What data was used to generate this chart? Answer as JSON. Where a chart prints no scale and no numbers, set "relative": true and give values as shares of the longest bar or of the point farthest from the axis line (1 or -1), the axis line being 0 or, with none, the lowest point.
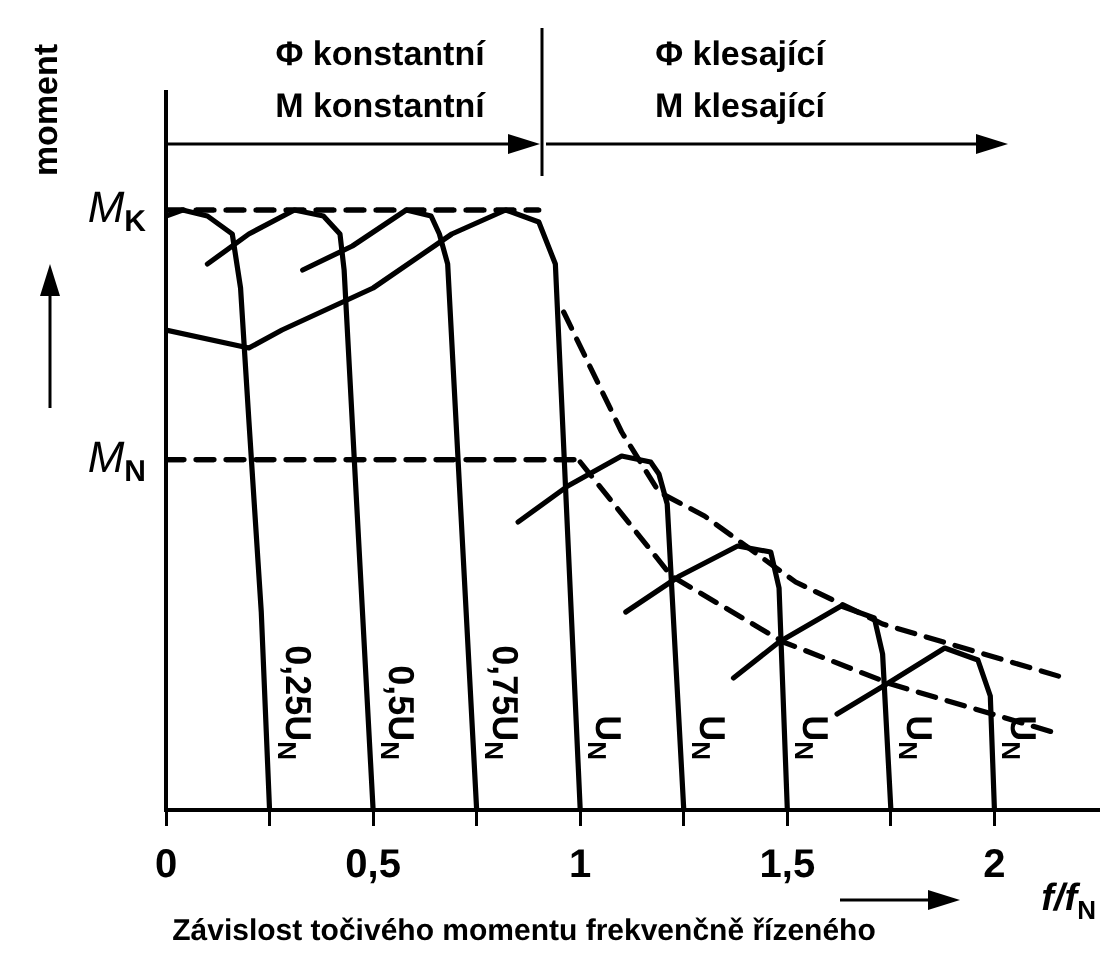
{
  "chart_data": {
    "type": "line",
    "title": "Závislost točivého momentu frekvenčně řízeného",
    "xlabel": "f/f$_{N}$",
    "ylabel": "moment",
    "xlim": [
      0,
      2.25
    ],
    "relative": true,
    "xticks": [
      0,
      {
        "value": 0.25,
        "label": null
      },
      {
        "value": 0.5,
        "label": "0,5"
      },
      {
        "value": 0.75,
        "label": null
      },
      1,
      {
        "value": 1.25,
        "label": null
      },
      {
        "value": 1.5,
        "label": "1,5"
      },
      {
        "value": 1.75,
        "label": null
      },
      2
    ],
    "annotations": [
      "Φ konstantní\nM konstantní",
      "Φ klesající\nM klesající"
    ],
    "ref_lines": [
      {
        "axis": "y",
        "value": 1,
        "label": "M$_{K}$",
        "line_style": "dashed"
      },
      {
        "axis": "y",
        "value": 0.584,
        "label": "M$_{N}$",
        "line_style": "dashed"
      }
    ],
    "grid": false,
    "legend": false,
    "marker": "none",
    "series": [
      {
        "name": "0,25U$_{N}$",
        "color": "#000000",
        "line_style": "solid",
        "x": [
          0,
          0.04,
          0.1,
          0.16,
          0.18,
          0.2,
          0.23,
          0.25
        ],
        "values": [
          0.99,
          1,
          0.99,
          0.96,
          0.87,
          0.65,
          0.33,
          0
        ]
      },
      {
        "name": "0,5U$_{N}$",
        "color": "#000000",
        "line_style": "solid",
        "x": [
          0.1,
          0.2,
          0.31,
          0.38,
          0.42,
          0.43,
          0.5
        ],
        "values": [
          0.91,
          0.96,
          1,
          0.99,
          0.96,
          0.9,
          0
        ]
      },
      {
        "name": "0,75U$_{N}$",
        "color": "#000000",
        "line_style": "solid",
        "x": [
          0.33,
          0.45,
          0.58,
          0.64,
          0.66,
          0.68,
          0.75
        ],
        "values": [
          0.9,
          0.94,
          1,
          0.99,
          0.96,
          0.91,
          0
        ]
      },
      {
        "name": "U$_{N}$",
        "color": "#000000",
        "line_style": "solid",
        "x": [
          0,
          0.2,
          0.28,
          0.5,
          0.69,
          0.82,
          0.9,
          0.94,
          1
        ],
        "values": [
          0.8,
          0.77,
          0.8,
          0.87,
          0.96,
          1,
          0.98,
          0.91,
          0
        ]
      },
      {
        "name": "U$_{N}$",
        "color": "#000000",
        "line_style": "solid",
        "x": [
          0.85,
          0.97,
          1.1,
          1.17,
          1.19,
          1.21,
          1.25
        ],
        "values": [
          0.48,
          0.54,
          0.59,
          0.58,
          0.56,
          0.51,
          0
        ]
      },
      {
        "name": "U$_{N}$",
        "color": "#000000",
        "line_style": "solid",
        "x": [
          1.11,
          1.24,
          1.38,
          1.46,
          1.48,
          1.5
        ],
        "values": [
          0.33,
          0.39,
          0.44,
          0.43,
          0.37,
          0
        ]
      },
      {
        "name": "U$_{N}$",
        "color": "#000000",
        "line_style": "solid",
        "x": [
          1.37,
          1.48,
          1.63,
          1.71,
          1.73,
          1.75
        ],
        "values": [
          0.22,
          0.28,
          0.34,
          0.32,
          0.26,
          0
        ]
      },
      {
        "name": "U$_{N}$",
        "color": "#000000",
        "line_style": "solid",
        "x": [
          1.62,
          1.74,
          1.88,
          1.96,
          1.99,
          2
        ],
        "values": [
          0.16,
          0.21,
          0.27,
          0.25,
          0.19,
          0
        ]
      },
      {
        "color": "#000000",
        "line_style": "dashed",
        "x": [
          0,
          0.9
        ],
        "values": [
          1,
          1
        ]
      },
      {
        "color": "#000000",
        "line_style": "dashed",
        "x": [
          0,
          1
        ],
        "values": [
          0.584,
          0.584
        ]
      },
      {
        "color": "#000000",
        "line_style": "dashed",
        "x": [
          0.96,
          1.1,
          1.19,
          1.3,
          1.52,
          1.73,
          2.17
        ],
        "values": [
          0.83,
          0.63,
          0.53,
          0.49,
          0.38,
          0.31,
          0.22
        ]
      },
      {
        "color": "#000000",
        "line_style": "dashed",
        "x": [
          1,
          1.22,
          1.49,
          1.75,
          2.14
        ],
        "values": [
          0.58,
          0.39,
          0.28,
          0.21,
          0.13
        ]
      }
    ]
  }
}
